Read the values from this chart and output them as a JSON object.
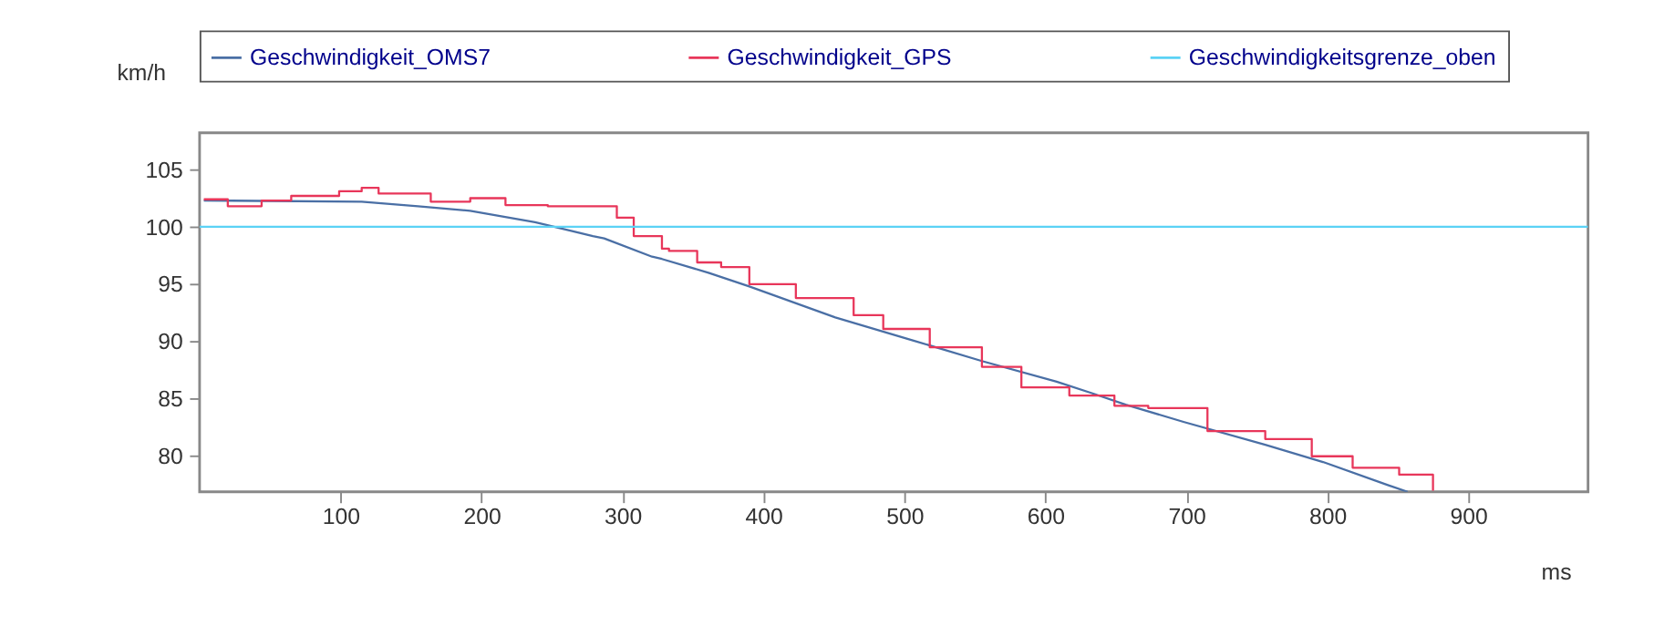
{
  "chart_data": {
    "type": "line",
    "xlabel": "ms",
    "ylabel": "km/h",
    "xlim": [
      0,
      985
    ],
    "ylim": [
      76.9,
      108.2
    ],
    "xticks": [
      100,
      200,
      300,
      400,
      500,
      600,
      700,
      800,
      900
    ],
    "yticks": [
      80,
      85,
      90,
      95,
      100,
      105
    ],
    "legend": "top",
    "grid": false,
    "series": [
      {
        "name": "Geschwindigkeit_OMS7",
        "color": "#4a6fa5",
        "x": [
          3,
          115,
          155,
          192,
          238,
          279,
          287,
          321,
          328,
          361,
          390,
          451,
          506,
          555,
          608,
          633,
          657,
          698,
          756,
          797,
          838,
          857
        ],
        "values": [
          102.3,
          102.2,
          101.8,
          101.4,
          100.4,
          99.2,
          99.0,
          97.4,
          97.2,
          96.0,
          94.8,
          92.1,
          90.1,
          88.3,
          86.5,
          85.5,
          84.5,
          83.0,
          81.0,
          79.5,
          77.7,
          76.9
        ]
      },
      {
        "name": "Geschwindigkeit_GPS",
        "color": "#e8365a",
        "type": "step",
        "x": [
          3,
          20,
          44,
          65,
          99,
          115,
          127,
          164,
          192,
          217,
          247,
          279,
          296,
          308,
          328,
          333,
          353,
          370,
          390,
          423,
          464,
          485,
          518,
          555,
          583,
          617,
          649,
          673,
          715,
          756,
          789,
          818,
          851,
          875
        ],
        "values": [
          102.4,
          101.8,
          102.3,
          102.7,
          103.1,
          103.4,
          102.9,
          102.2,
          102.5,
          101.9,
          101.8,
          101.8,
          100.8,
          99.2,
          98.1,
          97.9,
          96.9,
          96.5,
          95.0,
          93.8,
          92.3,
          91.1,
          89.5,
          87.8,
          86.0,
          85.3,
          84.4,
          84.2,
          82.2,
          81.5,
          80.0,
          79.0,
          78.4,
          77.0
        ]
      },
      {
        "name": "Geschwindigkeitsgrenze_oben",
        "color": "#5bd2f5",
        "x": [
          0,
          985
        ],
        "values": [
          100,
          100
        ]
      }
    ]
  }
}
